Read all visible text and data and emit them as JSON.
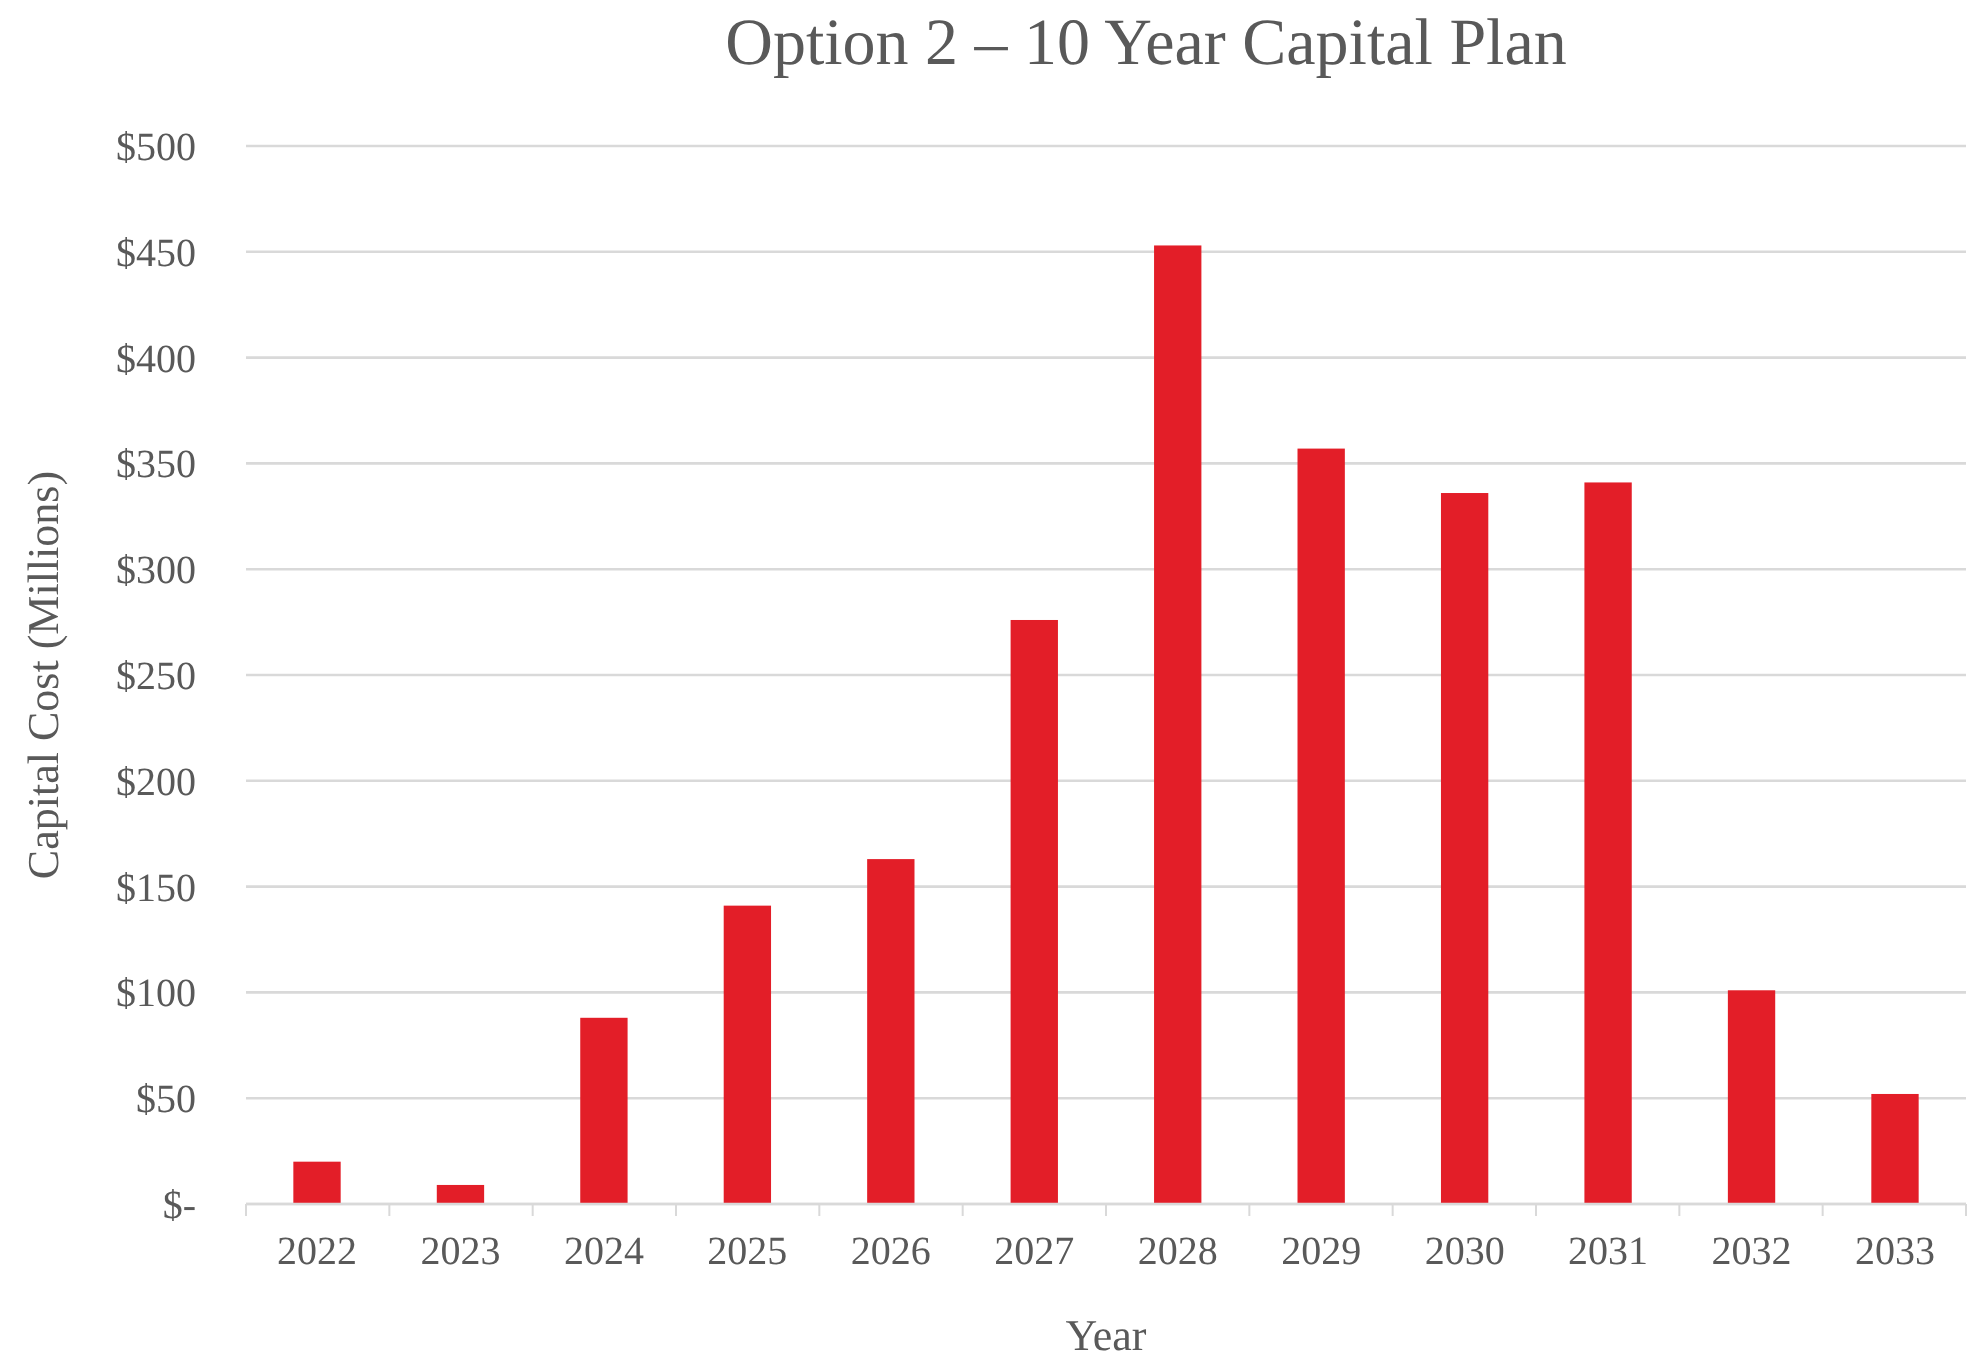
{
  "chart_data": {
    "type": "bar",
    "title": "Option 2 – 10 Year Capital Plan",
    "xlabel": "Year",
    "ylabel": "Capital Cost (Millions)",
    "categories": [
      "2022",
      "2023",
      "2024",
      "2025",
      "2026",
      "2027",
      "2028",
      "2029",
      "2030",
      "2031",
      "2032",
      "2033"
    ],
    "values": [
      20,
      9,
      88,
      141,
      163,
      276,
      453,
      357,
      336,
      341,
      101,
      52
    ],
    "color": "#e31e28",
    "ylim": [
      0,
      500
    ],
    "yticks": [
      {
        "value": 0,
        "label": "$-"
      },
      {
        "value": 50,
        "label": "$50"
      },
      {
        "value": 100,
        "label": "$100"
      },
      {
        "value": 150,
        "label": "$150"
      },
      {
        "value": 200,
        "label": "$200"
      },
      {
        "value": 250,
        "label": "$250"
      },
      {
        "value": 300,
        "label": "$300"
      },
      {
        "value": 350,
        "label": "$350"
      },
      {
        "value": 400,
        "label": "$400"
      },
      {
        "value": 450,
        "label": "$450"
      },
      {
        "value": 500,
        "label": "$500"
      }
    ],
    "grid": "y"
  }
}
